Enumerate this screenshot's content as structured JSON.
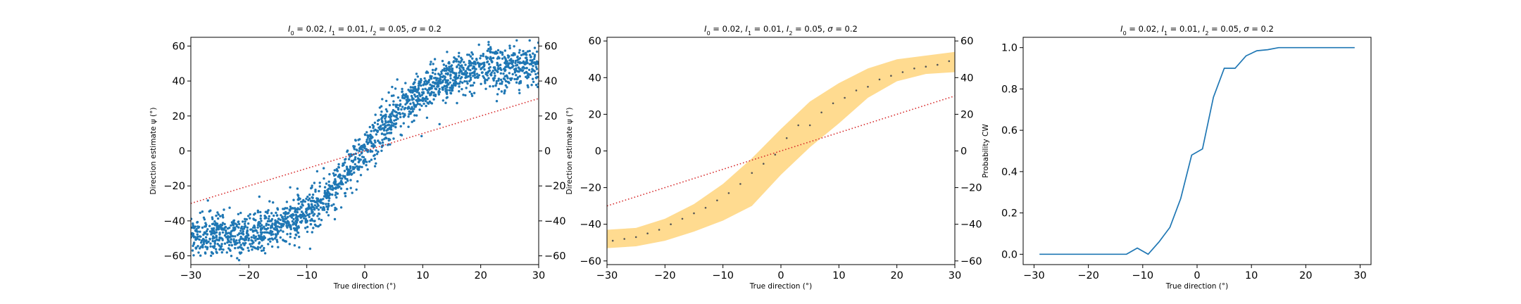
{
  "chart_data": [
    {
      "type": "scatter",
      "title": "I_0 = 0.02, I_1 = 0.01, I_2 = 0.05, σ = 0.2",
      "title_parts": [
        {
          "v": "I",
          "i": true
        },
        {
          "v": "0",
          "sub": true
        },
        {
          "v": " = 0.02, "
        },
        {
          "v": "I",
          "i": true
        },
        {
          "v": "1",
          "sub": true
        },
        {
          "v": " = 0.01, "
        },
        {
          "v": "I",
          "i": true
        },
        {
          "v": "2",
          "sub": true
        },
        {
          "v": " = 0.05, "
        },
        {
          "v": "σ",
          "i": true
        },
        {
          "v": " = 0.2"
        }
      ],
      "xlabel": "True direction (°)",
      "ylabel": "Direction estimate ψ (°)",
      "xlim": [
        -30,
        30
      ],
      "ylim": [
        -65,
        65
      ],
      "xticks": [
        "−30",
        "−20",
        "−10",
        "0",
        "10",
        "20",
        "30"
      ],
      "yticks_left": [
        "−60",
        "−40",
        "−20",
        "0",
        "20",
        "40",
        "60"
      ],
      "yticks_right": [
        "−60",
        "−40",
        "−20",
        "0",
        "20",
        "40",
        "60"
      ],
      "series": [
        {
          "role": "scatter",
          "color": "#1f77b4",
          "count": 2000,
          "generator": "psi = 50*tanh(x/12) + noise(sd 6)",
          "x_range": [
            -30,
            30
          ]
        },
        {
          "role": "identity",
          "style": "dotted",
          "color": "#d62728",
          "x": [
            -30,
            30
          ],
          "y": [
            -30,
            30
          ]
        }
      ]
    },
    {
      "type": "line",
      "title": "I_0 = 0.02, I_1 = 0.01, I_2 = 0.05, σ = 0.2",
      "title_parts": [
        {
          "v": "I",
          "i": true
        },
        {
          "v": "0",
          "sub": true
        },
        {
          "v": " = 0.02, "
        },
        {
          "v": "I",
          "i": true
        },
        {
          "v": "1",
          "sub": true
        },
        {
          "v": " = 0.01, "
        },
        {
          "v": "I",
          "i": true
        },
        {
          "v": "2",
          "sub": true
        },
        {
          "v": " = 0.05, "
        },
        {
          "v": "σ",
          "i": true
        },
        {
          "v": " = 0.2"
        }
      ],
      "xlabel": "True direction (°)",
      "ylabel": "Direction estimate ψ (°)",
      "xlim": [
        -30,
        30
      ],
      "ylim": [
        -62,
        62
      ],
      "xticks": [
        "−30",
        "−20",
        "−10",
        "0",
        "10",
        "20",
        "30"
      ],
      "yticks_left": [
        "−60",
        "−40",
        "−20",
        "0",
        "20",
        "40",
        "60"
      ],
      "yticks_right": [
        "−60",
        "−40",
        "−20",
        "0",
        "20",
        "40",
        "60"
      ],
      "band": {
        "color": "#ffd98a",
        "x": [
          -30,
          -25,
          -20,
          -15,
          -10,
          -5,
          0,
          5,
          10,
          15,
          20,
          25,
          30
        ],
        "lower": [
          -53,
          -52,
          -49,
          -44,
          -38,
          -30,
          -13,
          2,
          15,
          29,
          38,
          42,
          43
        ],
        "upper": [
          -43,
          -42,
          -37,
          -29,
          -18,
          -4,
          12,
          27,
          37,
          45,
          50,
          52,
          54
        ]
      },
      "means": {
        "color": "#555555",
        "x": [
          -29,
          -27,
          -25,
          -23,
          -21,
          -19,
          -17,
          -15,
          -13,
          -11,
          -9,
          -7,
          -5,
          -3,
          -1,
          1,
          3,
          5,
          7,
          9,
          11,
          13,
          15,
          17,
          19,
          21,
          23,
          25,
          27,
          29
        ],
        "y": [
          -49,
          -48,
          -47,
          -45,
          -43,
          -40,
          -37,
          -34,
          -31,
          -27,
          -23,
          -18,
          -12,
          -7,
          -2,
          7,
          14,
          14,
          21,
          26,
          29,
          33,
          35,
          39,
          41,
          43,
          45,
          46,
          47,
          49
        ]
      },
      "identity": {
        "style": "dotted",
        "color": "#d62728",
        "x": [
          -30,
          30
        ],
        "y": [
          -30,
          30
        ]
      }
    },
    {
      "type": "line",
      "title": "I_0 = 0.02, I_1 = 0.01, I_2 = 0.05, σ = 0.2",
      "title_parts": [
        {
          "v": "I",
          "i": true
        },
        {
          "v": "0",
          "sub": true
        },
        {
          "v": " = 0.02, "
        },
        {
          "v": "I",
          "i": true
        },
        {
          "v": "1",
          "sub": true
        },
        {
          "v": " = 0.01, "
        },
        {
          "v": "I",
          "i": true
        },
        {
          "v": "2",
          "sub": true
        },
        {
          "v": " = 0.05, "
        },
        {
          "v": "σ",
          "i": true
        },
        {
          "v": " = 0.2"
        }
      ],
      "xlabel": "True direction (°)",
      "ylabel": "Probability CW",
      "xlim": [
        -32,
        32
      ],
      "ylim": [
        -0.05,
        1.05
      ],
      "xticks": [
        "−30",
        "−20",
        "−10",
        "0",
        "10",
        "20",
        "30"
      ],
      "yticks_left": [
        "0.0",
        "0.2",
        "0.4",
        "0.6",
        "0.8",
        "1.0"
      ],
      "series": [
        {
          "color": "#1f77b4",
          "x": [
            -29,
            -27,
            -25,
            -23,
            -21,
            -19,
            -17,
            -15,
            -13,
            -11,
            -9,
            -7,
            -5,
            -3,
            -1,
            1,
            3,
            5,
            7,
            9,
            11,
            13,
            15,
            17,
            19,
            21,
            23,
            25,
            27,
            29
          ],
          "y": [
            0,
            0,
            0,
            0,
            0,
            0,
            0,
            0,
            0,
            0.03,
            0,
            0.06,
            0.13,
            0.27,
            0.48,
            0.51,
            0.76,
            0.9,
            0.9,
            0.96,
            0.985,
            0.99,
            1,
            1,
            1,
            1,
            1,
            1,
            1,
            1
          ]
        }
      ]
    }
  ]
}
